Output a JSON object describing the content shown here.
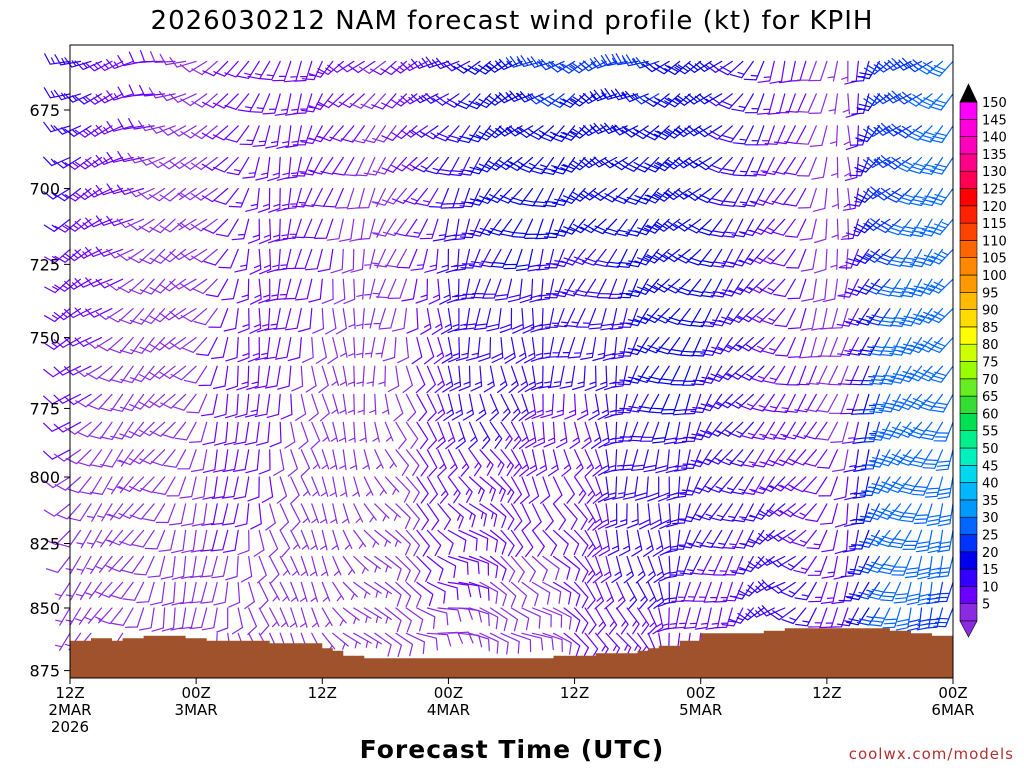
{
  "chart_data": {
    "type": "wind-barb-time-height",
    "title": "2026030212 NAM forecast wind profile (kt) for KPIH",
    "xlabel": "Forecast Time (UTC)",
    "ylabel": "",
    "credit": "coolwx.com/models",
    "y_axis": {
      "unit": "hPa",
      "ylim": [
        878,
        655
      ],
      "ticks": [
        675,
        700,
        725,
        750,
        775,
        800,
        825,
        850,
        875
      ]
    },
    "x_axis": {
      "range_hours": [
        0,
        84
      ],
      "ticks": [
        {
          "hour": 0,
          "lines": [
            "12Z",
            "2MAR",
            "2026"
          ]
        },
        {
          "hour": 12,
          "lines": [
            "00Z",
            "3MAR"
          ]
        },
        {
          "hour": 24,
          "lines": [
            "12Z"
          ]
        },
        {
          "hour": 36,
          "lines": [
            "00Z",
            "4MAR"
          ]
        },
        {
          "hour": 48,
          "lines": [
            "12Z"
          ]
        },
        {
          "hour": 60,
          "lines": [
            "00Z",
            "5MAR"
          ]
        },
        {
          "hour": 72,
          "lines": [
            "12Z"
          ]
        },
        {
          "hour": 84,
          "lines": [
            "00Z",
            "6MAR"
          ]
        }
      ]
    },
    "colorbar": {
      "unit": "kt",
      "levels": [
        5,
        10,
        15,
        20,
        25,
        30,
        35,
        40,
        45,
        50,
        55,
        60,
        65,
        70,
        75,
        80,
        85,
        90,
        95,
        100,
        105,
        110,
        115,
        120,
        125,
        130,
        135,
        140,
        145,
        150
      ],
      "colors": [
        "#8a2be2",
        "#6a00ff",
        "#3300ff",
        "#0000ee",
        "#0033ff",
        "#0066ff",
        "#0099ff",
        "#00b8ff",
        "#00d8f0",
        "#00f0c0",
        "#00f090",
        "#00e050",
        "#33dd33",
        "#66ee22",
        "#99ff00",
        "#ccff00",
        "#ffff00",
        "#ffdd00",
        "#ffbb00",
        "#ff9900",
        "#ff8800",
        "#ff6600",
        "#ff4400",
        "#ff2200",
        "#ff0000",
        "#ff0055",
        "#ff0088",
        "#ff00bb",
        "#ff00dd",
        "#ff00ff"
      ],
      "under_color": "#8a2be2",
      "over_color": "#000000"
    },
    "terrain": {
      "color": "#a0522d",
      "points": [
        [
          0,
          863
        ],
        [
          2,
          862
        ],
        [
          4,
          863
        ],
        [
          5,
          862
        ],
        [
          7,
          861
        ],
        [
          11,
          862
        ],
        [
          13,
          863
        ],
        [
          19,
          864
        ],
        [
          24,
          866
        ],
        [
          25,
          867
        ],
        [
          26,
          869
        ],
        [
          28,
          870
        ],
        [
          44,
          870
        ],
        [
          46,
          869
        ],
        [
          50,
          868
        ],
        [
          54,
          867
        ],
        [
          55,
          866
        ],
        [
          56,
          865
        ],
        [
          58,
          863
        ],
        [
          60,
          860
        ],
        [
          64,
          860
        ],
        [
          66,
          859
        ],
        [
          68,
          858
        ],
        [
          76,
          858
        ],
        [
          78,
          859
        ],
        [
          80,
          860
        ],
        [
          82,
          861
        ],
        [
          84,
          861
        ]
      ]
    },
    "time_steps": 85,
    "levels_hpa": [
      660,
      670,
      680,
      690,
      700,
      710,
      720,
      730,
      740,
      750,
      760,
      770,
      780,
      790,
      800,
      810,
      820,
      830,
      840,
      850,
      860,
      870
    ],
    "wind_keyframes": [
      {
        "hour": 0,
        "speed_top": 15,
        "speed_bottom": 8,
        "dir_top": 250,
        "dir_bottom": 220
      },
      {
        "hour": 6,
        "speed_top": 12,
        "speed_bottom": 8,
        "dir_top": 255,
        "dir_bottom": 200
      },
      {
        "hour": 12,
        "speed_top": 10,
        "speed_bottom": 7,
        "dir_top": 260,
        "dir_bottom": 180
      },
      {
        "hour": 18,
        "speed_top": 14,
        "speed_bottom": 8,
        "dir_top": 200,
        "dir_bottom": 160
      },
      {
        "hour": 24,
        "speed_top": 12,
        "speed_bottom": 6,
        "dir_top": 210,
        "dir_bottom": 140
      },
      {
        "hour": 30,
        "speed_top": 10,
        "speed_bottom": 6,
        "dir_top": 240,
        "dir_bottom": 110
      },
      {
        "hour": 36,
        "speed_top": 20,
        "speed_bottom": 8,
        "dir_top": 240,
        "dir_bottom": 90
      },
      {
        "hour": 48,
        "speed_top": 25,
        "speed_bottom": 10,
        "dir_top": 245,
        "dir_bottom": 120
      },
      {
        "hour": 56,
        "speed_top": 28,
        "speed_bottom": 12,
        "dir_top": 250,
        "dir_bottom": 160
      },
      {
        "hour": 62,
        "speed_top": 20,
        "speed_bottom": 15,
        "dir_top": 230,
        "dir_bottom": 200
      },
      {
        "hour": 68,
        "speed_top": 10,
        "speed_bottom": 20,
        "dir_top": 200,
        "dir_bottom": 240
      },
      {
        "hour": 74,
        "speed_top": 8,
        "speed_bottom": 10,
        "dir_top": 180,
        "dir_bottom": 200
      },
      {
        "hour": 78,
        "speed_top": 28,
        "speed_bottom": 30,
        "dir_top": 235,
        "dir_bottom": 200
      },
      {
        "hour": 84,
        "speed_top": 30,
        "speed_bottom": 32,
        "dir_top": 230,
        "dir_bottom": 190
      }
    ]
  }
}
